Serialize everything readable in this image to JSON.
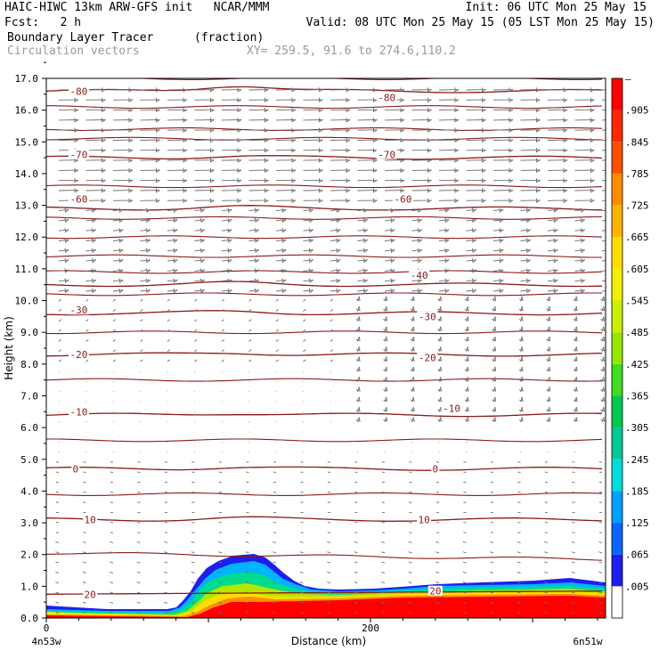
{
  "header": {
    "line1_left": "HAIC-HIWC 13km ARW-GFS init   NCAR/MMM",
    "line1_right": "Init: 06 UTC Mon 25 May 15",
    "line2_left": "Fcst:   2 h",
    "line2_right": "Valid: 08 UTC Mon 25 May 15 (05 LST Mon 25 May 15)",
    "field_name": "Boundary Layer Tracer",
    "field_units": "(fraction)",
    "vector_name": "Circulation vectors",
    "xy_range": "XY= 259.5, 91.6 to 274.6,110.2"
  },
  "colors": {
    "contour": "#8b1a1a",
    "vector": "#6e6e6e",
    "colorbar": [
      "#ffffff",
      "#1e1ef0",
      "#0a64ff",
      "#00a0ff",
      "#00dcdc",
      "#00c896",
      "#00c850",
      "#40dc20",
      "#96e600",
      "#c8f000",
      "#f0f000",
      "#ffdc00",
      "#ffb400",
      "#ff8c00",
      "#ff5000",
      "#ff2800",
      "#ff0000"
    ]
  },
  "chart_data": {
    "type": "contour",
    "title": "Boundary Layer Tracer",
    "units": "(fraction)",
    "xlabel": "Distance (km)",
    "ylabel": "Height (km)",
    "xlim": [
      0,
      345
    ],
    "ylim": [
      0,
      17
    ],
    "x_ticks": [
      {
        "value": 0,
        "label": "0"
      },
      {
        "value": 200,
        "label": "200"
      }
    ],
    "y_ticks": [
      "0.0",
      "1.0",
      "2.0",
      "3.0",
      "4.0",
      "5.0",
      "6.0",
      "7.0",
      "8.0",
      "9.0",
      "10.0",
      "11.0",
      "12.0",
      "13.0",
      "14.0",
      "15.0",
      "16.0",
      "17.0"
    ],
    "x_end_labels": {
      "left": "4n53w",
      "right": "6n51w"
    },
    "colorbar_labels": [
      ".005",
      ".065",
      ".125",
      ".185",
      ".245",
      ".305",
      ".365",
      ".425",
      ".485",
      ".545",
      ".605",
      ".665",
      ".725",
      ".785",
      ".845",
      ".905",
      "–"
    ],
    "temperature_contours": [
      {
        "label": "-80",
        "height": 16.6
      },
      {
        "label": "-70",
        "height": 14.5
      },
      {
        "label": "-60",
        "height": 12.9
      },
      {
        "label": "-40",
        "height": 10.5
      },
      {
        "label": "-30",
        "height": 9.6
      },
      {
        "label": "-20",
        "height": 8.3
      },
      {
        "label": "-10",
        "height": 6.4
      },
      {
        "label": "0",
        "height": 4.7
      },
      {
        "label": "10",
        "height": 3.1
      },
      {
        "label": "20",
        "height": 0.8
      }
    ],
    "contour_labels": [
      {
        "text": "-80",
        "x": 20,
        "y": 16.6
      },
      {
        "text": "-80",
        "x": 210,
        "y": 16.4
      },
      {
        "text": "-70",
        "x": 20,
        "y": 14.6
      },
      {
        "text": "-70",
        "x": 210,
        "y": 14.6
      },
      {
        "text": "-60",
        "x": 20,
        "y": 13.2
      },
      {
        "text": "-60",
        "x": 220,
        "y": 13.2
      },
      {
        "text": "-40",
        "x": 230,
        "y": 10.8
      },
      {
        "text": "-30",
        "x": 20,
        "y": 9.7
      },
      {
        "text": "-30",
        "x": 235,
        "y": 9.5
      },
      {
        "text": "-20",
        "x": 20,
        "y": 8.3
      },
      {
        "text": "-20",
        "x": 235,
        "y": 8.2
      },
      {
        "text": "-10",
        "x": 20,
        "y": 6.5
      },
      {
        "text": "-10",
        "x": 250,
        "y": 6.6
      },
      {
        "text": "0",
        "x": 18,
        "y": 4.7
      },
      {
        "text": "0",
        "x": 240,
        "y": 4.7
      },
      {
        "text": "10",
        "x": 27,
        "y": 3.1
      },
      {
        "text": "10",
        "x": 233,
        "y": 3.1
      },
      {
        "text": "20",
        "x": 27,
        "y": 0.75
      },
      {
        "text": "20",
        "x": 240,
        "y": 0.85
      }
    ]
  }
}
